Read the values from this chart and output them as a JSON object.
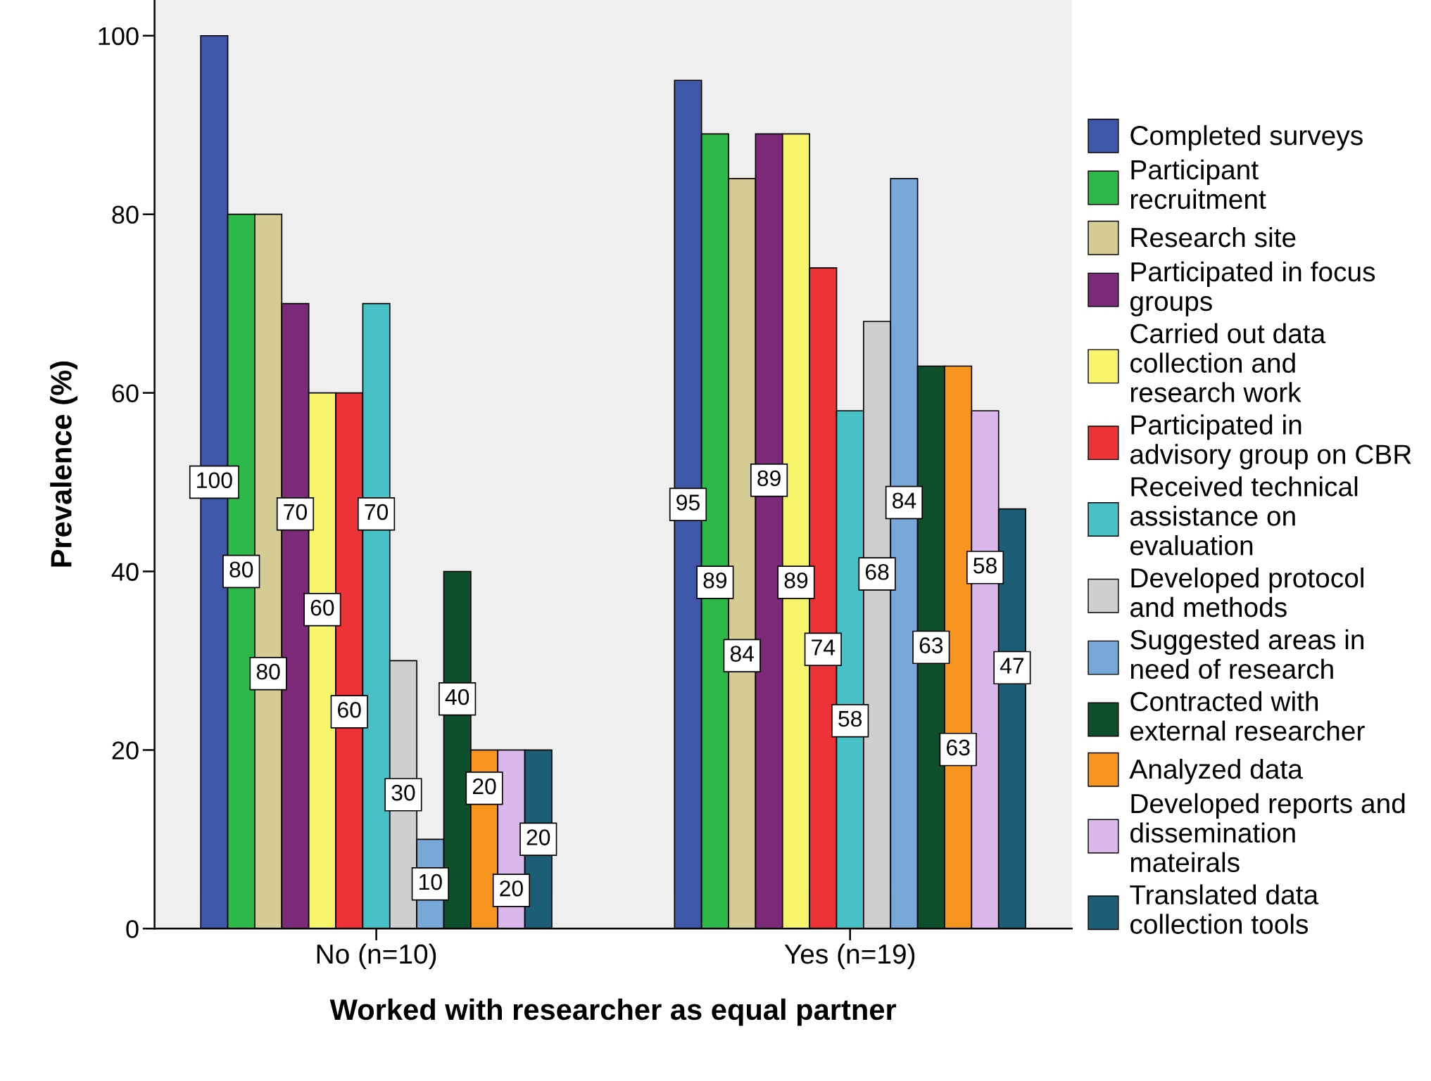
{
  "chart_data": {
    "type": "bar",
    "xlabel": "Worked with researcher as equal partner",
    "ylabel": "Prevalence (%)",
    "categories": [
      "No (n=10)",
      "Yes (n=19)"
    ],
    "series": [
      {
        "name": "Completed surveys",
        "color": "#3f57a8",
        "values": [
          100,
          95
        ]
      },
      {
        "name": "Participant recruitment",
        "color": "#2db84a",
        "values": [
          80,
          89
        ]
      },
      {
        "name": "Research site",
        "color": "#d4cc94",
        "values": [
          80,
          84
        ]
      },
      {
        "name": "Participated in focus groups",
        "color": "#7b2a7a",
        "values": [
          70,
          89
        ]
      },
      {
        "name": "Carried out data collection and research work",
        "color": "#f7f56b",
        "values": [
          60,
          89
        ]
      },
      {
        "name": "Participated in advisory group on CBR",
        "color": "#ee3338",
        "values": [
          60,
          74
        ]
      },
      {
        "name": "Received technical assistance on evaluation",
        "color": "#47c1c6",
        "values": [
          70,
          58
        ]
      },
      {
        "name": "Developed protocol and methods",
        "color": "#cfcfcf",
        "values": [
          30,
          68
        ]
      },
      {
        "name": "Suggested areas in need of research",
        "color": "#78a8d8",
        "values": [
          10,
          84
        ]
      },
      {
        "name": "Contracted with external researcher",
        "color": "#0d4f2a",
        "values": [
          40,
          63
        ]
      },
      {
        "name": "Analyzed data",
        "color": "#f7951e",
        "values": [
          20,
          63
        ]
      },
      {
        "name": "Developed reports and dissemination mateirals",
        "color": "#dbb8ec",
        "values": [
          20,
          58
        ]
      },
      {
        "name": "Translated data collection tools",
        "color": "#1b5e75",
        "values": [
          20,
          47
        ]
      }
    ],
    "ylim": [
      0,
      104
    ],
    "yticks": [
      0,
      20,
      40,
      60,
      80,
      100
    ],
    "data_labels": true,
    "legend": "right",
    "grid": false
  }
}
